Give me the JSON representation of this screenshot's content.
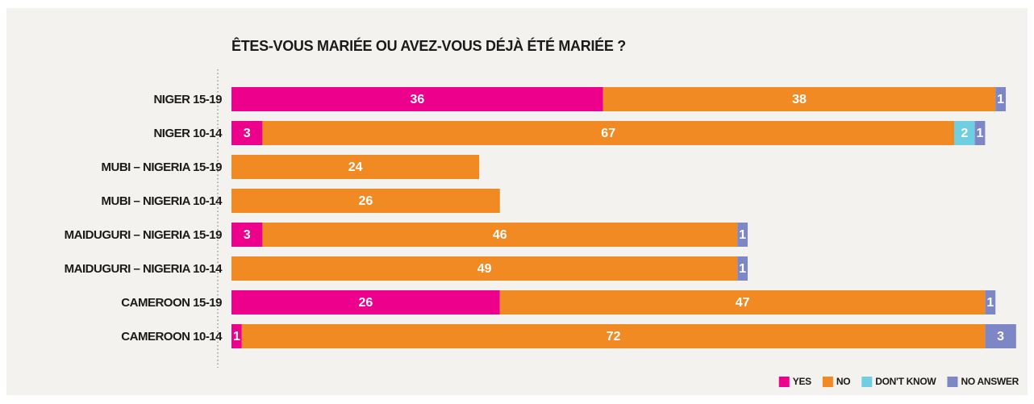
{
  "chart_data": {
    "type": "bar",
    "orientation": "horizontal",
    "stacked": true,
    "title": "ÊTES-VOUS MARIÉE OU AVEZ-VOUS DÉJÀ ÉTÉ MARIÉE ?",
    "categories": [
      "NIGER 15-19",
      "NIGER 10-14",
      "MUBI – NIGERIA 15-19",
      "MUBI – NIGERIA 10-14",
      "MAIDUGURI – NIGERIA 15-19",
      "MAIDUGURI – NIGERIA 10-14",
      "CAMEROON 15-19",
      "CAMEROON 10-14"
    ],
    "series": [
      {
        "name": "YES",
        "color": "#ec008c",
        "values": [
          36,
          3,
          null,
          null,
          3,
          null,
          26,
          1
        ]
      },
      {
        "name": "NO",
        "color": "#f28a24",
        "values": [
          38,
          67,
          24,
          26,
          46,
          49,
          47,
          72
        ]
      },
      {
        "name": "DON'T KNOW",
        "color": "#6fcfe0",
        "values": [
          null,
          2,
          null,
          null,
          null,
          null,
          null,
          null
        ]
      },
      {
        "name": "NO ANSWER",
        "color": "#7d87c6",
        "values": [
          1,
          1,
          null,
          null,
          1,
          1,
          1,
          3
        ]
      }
    ],
    "legend": "bottom-right"
  }
}
